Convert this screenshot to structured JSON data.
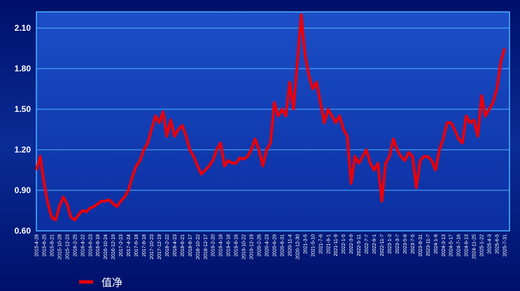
{
  "chart_data": {
    "type": "line",
    "categories": [
      "2015-4-28",
      null,
      "2015-6-25",
      null,
      "2015-8-21",
      null,
      "2015-10-28",
      null,
      "2015-12-23",
      null,
      "2016-2-25",
      null,
      "2016-4-22",
      null,
      "2016-6-23",
      null,
      "2016-8-18",
      null,
      "2016-10-24",
      null,
      "2016-12-19",
      null,
      "2017-2-23",
      null,
      "2017-4-24",
      null,
      "2017-6-18",
      null,
      "2017-8-18",
      null,
      "2017-10-23",
      null,
      "2017-12-19",
      null,
      "2018-2-22",
      null,
      "2018-4-23",
      null,
      "2018-6-21",
      null,
      "2018-8-17",
      null,
      "2018-10-22",
      null,
      "2018-12-17",
      null,
      "2019-2-20",
      null,
      "2019-4-18",
      null,
      "2019-6-18",
      null,
      "2019-8-16",
      null,
      "2019-10-22",
      null,
      "2019-12-19",
      null,
      "2020-2-26",
      null,
      "2020-4-23",
      null,
      "2020-6-29",
      null,
      "2020-8-31",
      null,
      "2020-11-4",
      null,
      "2020-12-30",
      null,
      "2021-3-5",
      null,
      "2021-5-10",
      null,
      "2021-7-6",
      null,
      "2021-9-1",
      null,
      "2021-11-9",
      null,
      "2022-1-5",
      null,
      "2022-3-9",
      null,
      "2022-5-11",
      null,
      "2022-7-7",
      null,
      "2022-9-1",
      null,
      "2022-11-7",
      null,
      "2023-1-3",
      null,
      "2023-3-7",
      null,
      "2023-5-8",
      null,
      "2023-7-5",
      null,
      "2023-8-31",
      null,
      "2023-11-7",
      null,
      "2024-1-8",
      null,
      "2024-3-13",
      null,
      "2024-5-17",
      null,
      "2024-7-16",
      null,
      "2024-9-13",
      null,
      "2024-11-25",
      null,
      "2025-1-22",
      null,
      "2025-4-3",
      null,
      "2025-6-5",
      null,
      "2025-7-31"
    ],
    "series": [
      {
        "name": "值净",
        "color": "#e8000b",
        "values": [
          1.05,
          1.15,
          0.95,
          0.8,
          0.7,
          0.68,
          0.78,
          0.85,
          0.8,
          0.7,
          0.68,
          0.72,
          0.75,
          0.74,
          0.77,
          0.78,
          0.8,
          0.82,
          0.82,
          0.83,
          0.8,
          0.78,
          0.82,
          0.85,
          0.9,
          1.0,
          1.08,
          1.12,
          1.2,
          1.25,
          1.35,
          1.45,
          1.4,
          1.48,
          1.3,
          1.42,
          1.3,
          1.35,
          1.38,
          1.3,
          1.2,
          1.15,
          1.08,
          1.02,
          1.05,
          1.08,
          1.12,
          1.2,
          1.25,
          1.08,
          1.12,
          1.1,
          1.1,
          1.14,
          1.13,
          1.15,
          1.2,
          1.28,
          1.2,
          1.08,
          1.2,
          1.25,
          1.55,
          1.45,
          1.5,
          1.45,
          1.7,
          1.5,
          1.85,
          2.2,
          1.9,
          1.75,
          1.65,
          1.7,
          1.55,
          1.4,
          1.5,
          1.45,
          1.4,
          1.45,
          1.35,
          1.3,
          0.95,
          1.15,
          1.1,
          1.15,
          1.2,
          1.1,
          1.05,
          1.1,
          0.82,
          1.1,
          1.15,
          1.28,
          1.2,
          1.15,
          1.12,
          1.18,
          1.15,
          0.92,
          1.12,
          1.15,
          1.15,
          1.12,
          1.05,
          1.2,
          1.28,
          1.4,
          1.4,
          1.35,
          1.28,
          1.25,
          1.45,
          1.4,
          1.42,
          1.3,
          1.6,
          1.45,
          1.5,
          1.55,
          1.65,
          1.85,
          1.95
        ]
      }
    ],
    "ylim": [
      0.6,
      2.22
    ],
    "yticks": [
      {
        "value": 0.6,
        "label": "0.60"
      },
      {
        "value": 0.9,
        "label": "0.90"
      },
      {
        "value": 1.2,
        "label": "1.20"
      },
      {
        "value": 1.5,
        "label": "1.50"
      },
      {
        "value": 1.8,
        "label": "1.80"
      },
      {
        "value": 2.1,
        "label": "2.10"
      }
    ],
    "grid": true
  }
}
